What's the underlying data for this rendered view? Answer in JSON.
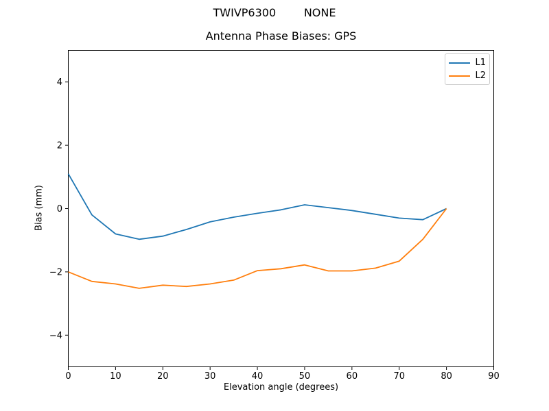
{
  "figure": {
    "suptitle": "TWIVP6300        NONE",
    "background": "#ffffff"
  },
  "chart_data": {
    "type": "line",
    "title": "Antenna Phase Biases: GPS",
    "xlabel": "Elevation angle (degrees)",
    "ylabel": "Bias (mm)",
    "xlim": [
      0,
      90
    ],
    "ylim": [
      -5,
      5
    ],
    "xticks": [
      0,
      10,
      20,
      30,
      40,
      50,
      60,
      70,
      80,
      90
    ],
    "yticks": [
      -4,
      -2,
      0,
      2,
      4
    ],
    "grid": false,
    "legend": {
      "position": "upper right",
      "entries": [
        "L1",
        "L2"
      ]
    },
    "axis_color": "#000000",
    "x": [
      0,
      5,
      10,
      15,
      20,
      25,
      30,
      35,
      40,
      45,
      50,
      55,
      60,
      65,
      70,
      75,
      80
    ],
    "series": [
      {
        "name": "L1",
        "color": "#1f77b4",
        "values": [
          1.1,
          -0.2,
          -0.8,
          -0.97,
          -0.87,
          -0.66,
          -0.42,
          -0.27,
          -0.15,
          -0.04,
          0.12,
          0.03,
          -0.06,
          -0.18,
          -0.3,
          -0.35,
          0.0
        ]
      },
      {
        "name": "L2",
        "color": "#ff7f0e",
        "values": [
          -2.0,
          -2.3,
          -2.38,
          -2.52,
          -2.42,
          -2.46,
          -2.38,
          -2.26,
          -1.96,
          -1.9,
          -1.78,
          -1.97,
          -1.97,
          -1.88,
          -1.66,
          -0.97,
          0.0
        ]
      }
    ]
  }
}
